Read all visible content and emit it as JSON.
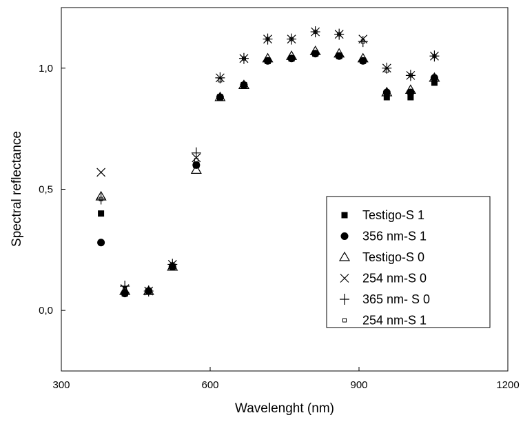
{
  "chart_data": {
    "type": "scatter",
    "title": "",
    "xlabel": "Wavelenght (nm)",
    "ylabel": "Spectral reflectance",
    "xlim": [
      300,
      1200
    ],
    "ylim": [
      -0.25,
      1.25
    ],
    "x_ticks": [
      300,
      600,
      900,
      1200
    ],
    "x_tick_labels": [
      "300",
      "600",
      "900",
      "1200"
    ],
    "y_ticks": [
      0.0,
      0.5,
      1.0
    ],
    "y_tick_labels": [
      "0,0",
      "0,5",
      "1,0"
    ],
    "grid": false,
    "legend_position": "bottom-right",
    "x": [
      380,
      428,
      476,
      524,
      572,
      620,
      668,
      716,
      764,
      812,
      860,
      908,
      956,
      1004,
      1052
    ],
    "series": [
      {
        "name": "Testigo-S 1",
        "marker": "filled-square",
        "values": [
          0.4,
          0.07,
          0.08,
          0.18,
          0.6,
          0.88,
          0.93,
          1.03,
          1.04,
          1.06,
          1.05,
          1.03,
          0.88,
          0.88,
          0.94
        ]
      },
      {
        "name": "356 nm-S 1",
        "marker": "filled-circle",
        "values": [
          0.28,
          0.07,
          0.08,
          0.18,
          0.6,
          0.88,
          0.93,
          1.03,
          1.04,
          1.06,
          1.05,
          1.03,
          0.9,
          0.9,
          0.96
        ]
      },
      {
        "name": "Testigo-S 0",
        "marker": "open-triangle",
        "values": [
          0.47,
          0.08,
          0.08,
          0.18,
          0.58,
          0.88,
          0.93,
          1.04,
          1.05,
          1.07,
          1.06,
          1.04,
          0.9,
          0.91,
          0.96
        ]
      },
      {
        "name": "254 nm-S 0",
        "marker": "x-cross",
        "values": [
          0.57,
          0.09,
          0.08,
          0.19,
          0.63,
          0.96,
          1.04,
          1.12,
          1.12,
          1.15,
          1.14,
          1.12,
          1.0,
          0.97,
          1.05
        ]
      },
      {
        "name": "365 nm- S 0",
        "marker": "plus",
        "values": [
          0.46,
          0.1,
          0.08,
          0.19,
          0.65,
          0.96,
          1.04,
          1.12,
          1.12,
          1.15,
          1.14,
          1.11,
          1.0,
          0.97,
          1.05
        ]
      },
      {
        "name": "254 nm-S 1",
        "marker": "small-open-square",
        "values": [
          0.46,
          0.09,
          0.08,
          0.19,
          0.62,
          0.95,
          1.04,
          1.12,
          1.12,
          1.15,
          1.14,
          1.11,
          0.99,
          0.97,
          1.05
        ]
      }
    ]
  }
}
